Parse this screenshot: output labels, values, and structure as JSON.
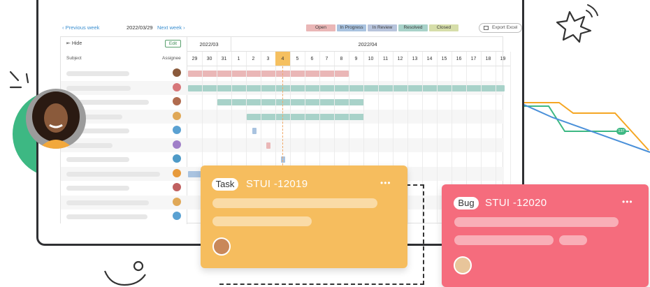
{
  "toolbar": {
    "prev_week": "Previous week",
    "current_date": "2022/03/29",
    "next_week": "Next week",
    "export_label": "Export Excel"
  },
  "legend": [
    {
      "label": "Open",
      "color": "#eab7b7"
    },
    {
      "label": "In Progress",
      "color": "#a9c3e0"
    },
    {
      "label": "In Review",
      "color": "#b8c4dc"
    },
    {
      "label": "Resolved",
      "color": "#a8d2c9"
    },
    {
      "label": "Closed",
      "color": "#d6dea9"
    }
  ],
  "left_panel": {
    "hide_label": "Hide",
    "edit_label": "Edit",
    "subject_header": "Subject",
    "assignee_header": "Assignee"
  },
  "timeline": {
    "months": [
      "2022/03",
      "2022/04"
    ],
    "days": [
      "29",
      "30",
      "31",
      "1",
      "2",
      "3",
      "4",
      "5",
      "6",
      "7",
      "8",
      "9",
      "10",
      "11",
      "12",
      "13",
      "14",
      "15",
      "16",
      "17",
      "18",
      "19"
    ],
    "today": "4"
  },
  "colors": {
    "open": "#eab7b7",
    "resolved": "#a8d2c9",
    "in_progress": "#a9c3e0",
    "task_card": "#f6bd5e",
    "bug_card": "#f56c7d",
    "accent_green": "#3db883",
    "curve_orange": "#f5a623",
    "curve_blue": "#4a90d9"
  },
  "task_card": {
    "tag": "Task",
    "id": "STUI -12019",
    "more": "•••"
  },
  "bug_card": {
    "tag": "Bug",
    "id": "STUI -12020",
    "more": "•••"
  },
  "badge": "137"
}
